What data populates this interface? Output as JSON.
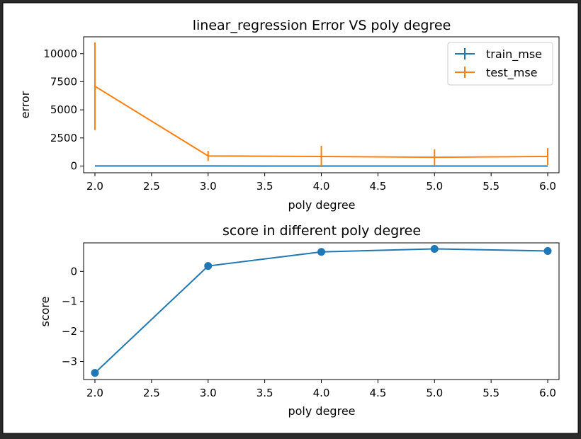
{
  "chart_data": [
    {
      "type": "line",
      "title": "linear_regression Error VS poly degree",
      "xlabel": "poly degree",
      "ylabel": "error",
      "xlim": [
        1.9,
        6.1
      ],
      "ylim": [
        -600,
        11500
      ],
      "xticks": [
        "2.0",
        "2.5",
        "3.0",
        "3.5",
        "4.0",
        "4.5",
        "5.0",
        "5.5",
        "6.0"
      ],
      "yticks": [
        "0",
        "2500",
        "5000",
        "7500",
        "10000"
      ],
      "legend_position": "top-right",
      "grid": false,
      "x": [
        2,
        3,
        4,
        5,
        6
      ],
      "series": [
        {
          "name": "train_mse",
          "color": "#1f77b4",
          "values": [
            5,
            3,
            2,
            2,
            2
          ],
          "err": [
            2,
            1,
            1,
            1,
            1
          ]
        },
        {
          "name": "test_mse",
          "color": "#ff7f0e",
          "values": [
            7100,
            900,
            850,
            780,
            850
          ],
          "err": [
            3900,
            450,
            950,
            700,
            750
          ]
        }
      ]
    },
    {
      "type": "line",
      "title": "score in different poly degree",
      "xlabel": "poly degree",
      "ylabel": "score",
      "xlim": [
        1.9,
        6.1
      ],
      "ylim": [
        -3.6,
        0.95
      ],
      "xticks": [
        "2.0",
        "2.5",
        "3.0",
        "3.5",
        "4.0",
        "4.5",
        "5.0",
        "5.5",
        "6.0"
      ],
      "yticks": [
        "0",
        "−1",
        "−2",
        "−3"
      ],
      "grid": false,
      "markers": true,
      "x": [
        2,
        3,
        4,
        5,
        6
      ],
      "series": [
        {
          "color": "#1f77b4",
          "values": [
            -3.38,
            0.18,
            0.65,
            0.75,
            0.68
          ]
        }
      ]
    }
  ]
}
